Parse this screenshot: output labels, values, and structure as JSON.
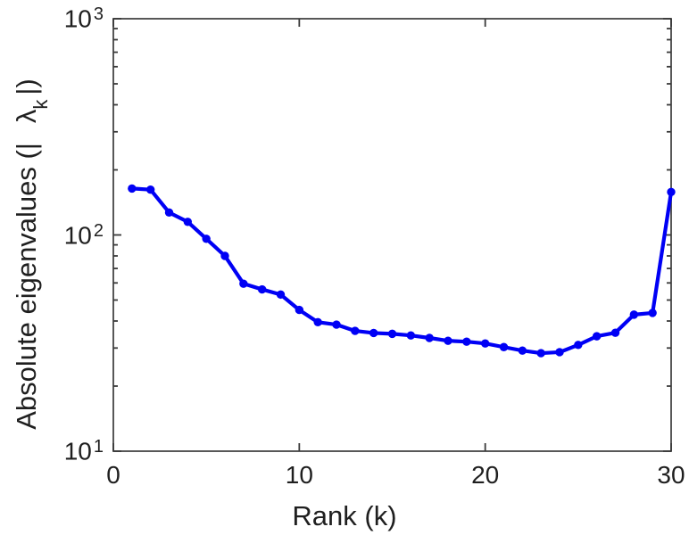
{
  "figure": {
    "background": "#ffffff",
    "axis_color": "#454545",
    "tick_color": "#3a3a3a",
    "text_color": "#1f1f1f",
    "line_color": "#0000f5"
  },
  "chart_data": {
    "type": "line",
    "title": "",
    "xlabel": "Rank (k)",
    "ylabel_prefix": "Absolute eigenvalues (|",
    "ylabel_lambda": "λ",
    "ylabel_subscript": "k",
    "ylabel_suffix": "|)",
    "x": [
      1,
      2,
      3,
      4,
      5,
      6,
      7,
      8,
      9,
      10,
      11,
      12,
      13,
      14,
      15,
      16,
      17,
      18,
      19,
      20,
      21,
      22,
      23,
      24,
      25,
      26,
      27,
      28,
      29,
      30
    ],
    "values": [
      164,
      162,
      127,
      115,
      96,
      80,
      59.5,
      56,
      53,
      45,
      39.5,
      38.5,
      36,
      35.2,
      34.9,
      34.3,
      33.4,
      32.4,
      32.1,
      31.5,
      30.3,
      29.2,
      28.4,
      28.7,
      31,
      34,
      35.3,
      42.8,
      43.6,
      158
    ],
    "series_name": "absolute-eigenvalues",
    "marker": "circle",
    "line_width": 4.2,
    "marker_radius": 4.7,
    "xlim": [
      0,
      30
    ],
    "ylim": [
      10,
      1000
    ],
    "y_scale": "log",
    "grid": false,
    "legend": null,
    "xticks": [
      {
        "value": 0,
        "label": "0"
      },
      {
        "value": 10,
        "label": "10"
      },
      {
        "value": 20,
        "label": "20"
      },
      {
        "value": 30,
        "label": "30"
      }
    ],
    "yticks": [
      {
        "value": 10,
        "base": "10",
        "exp": "1"
      },
      {
        "value": 100,
        "base": "10",
        "exp": "2"
      },
      {
        "value": 1000,
        "base": "10",
        "exp": "3"
      }
    ]
  }
}
